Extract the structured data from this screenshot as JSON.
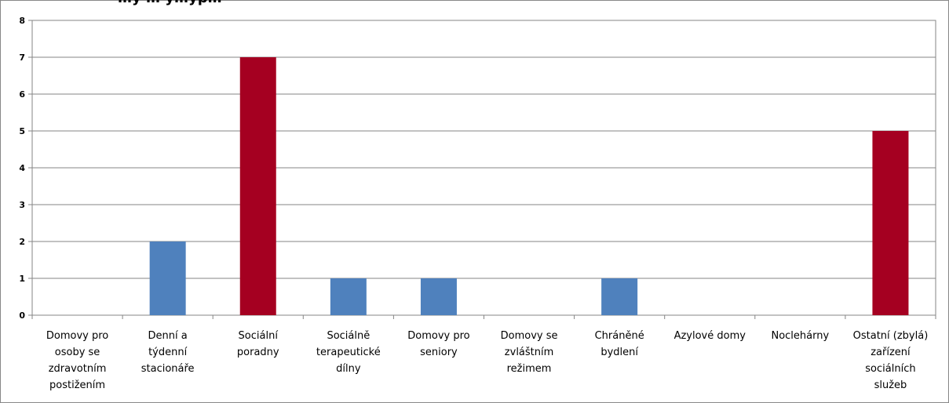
{
  "chart_data": {
    "type": "bar",
    "title": "…y … y…yp…",
    "categories": [
      [
        "Domovy pro",
        "osoby se",
        "zdravotním",
        "postižením"
      ],
      [
        "Denní a",
        "týdenní",
        "stacionáře"
      ],
      [
        "Sociální",
        "poradny"
      ],
      [
        "Sociálně",
        "terapeutické",
        "dílny"
      ],
      [
        "Domovy pro",
        "seniory"
      ],
      [
        "Domovy se",
        "zvláštním",
        "režimem"
      ],
      [
        "Chráněné",
        "bydlení"
      ],
      [
        "Azylové domy"
      ],
      [
        "Noclehárny"
      ],
      [
        "Ostatní (zbylá)",
        "zařízení",
        "sociálních",
        "služeb"
      ]
    ],
    "values": [
      0,
      2,
      7,
      1,
      1,
      0,
      1,
      0,
      0,
      5
    ],
    "bar_colors": [
      "#4f81bd",
      "#4f81bd",
      "#a50021",
      "#4f81bd",
      "#4f81bd",
      "#4f81bd",
      "#4f81bd",
      "#4f81bd",
      "#4f81bd",
      "#a50021"
    ],
    "ylim": [
      0,
      8
    ],
    "yticks": [
      "0",
      "1",
      "2",
      "3",
      "4",
      "5",
      "6",
      "7",
      "8"
    ],
    "grid": true,
    "legend": "none"
  }
}
